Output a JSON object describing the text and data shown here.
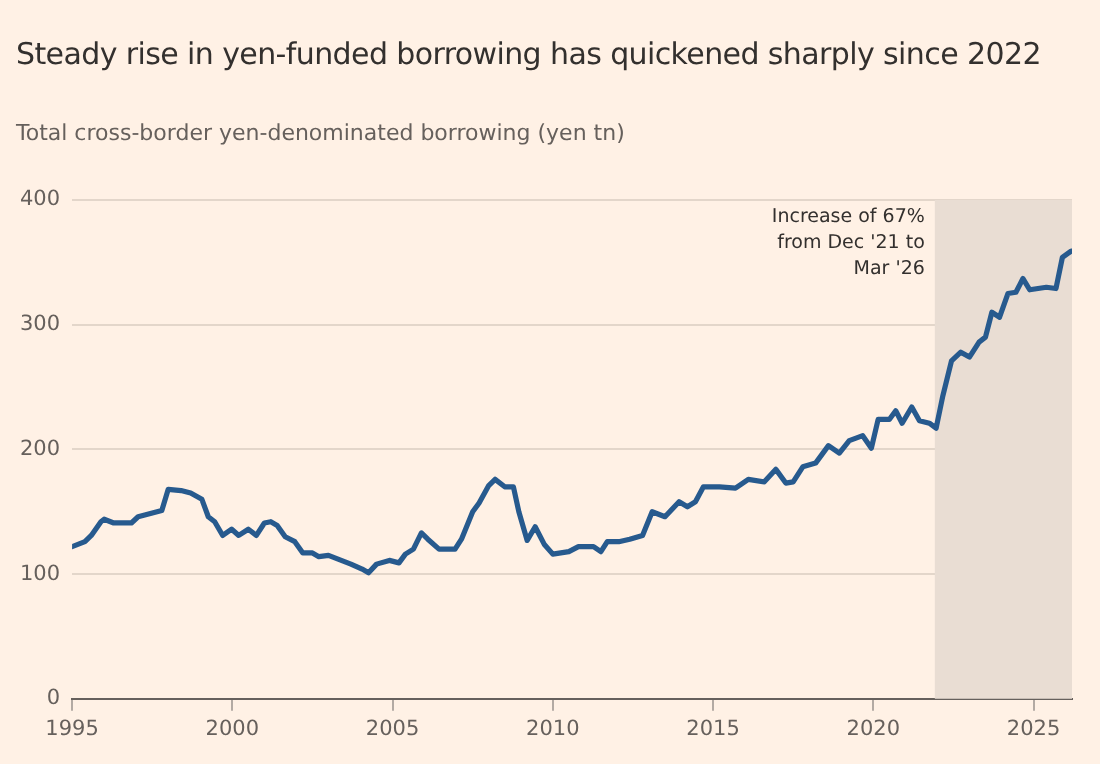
{
  "chart_data": {
    "type": "line",
    "title": "Steady rise in yen-funded borrowing has quickened sharply since 2022",
    "subtitle": "Total cross-border yen-denominated borrowing (yen tn)",
    "x": [
      1995.0,
      1995.4,
      1995.6,
      1995.9,
      1996.0,
      1996.3,
      1996.85,
      1997.06,
      1997.8,
      1998.0,
      1998.4,
      1998.7,
      1999.05,
      1999.25,
      1999.45,
      1999.7,
      1999.98,
      2000.2,
      2000.5,
      2000.75,
      2001.0,
      2001.2,
      2001.4,
      2001.65,
      2001.95,
      2002.2,
      2002.5,
      2002.7,
      2003.0,
      2003.3,
      2003.7,
      2004.05,
      2004.25,
      2004.5,
      2004.9,
      2005.2,
      2005.4,
      2005.65,
      2005.9,
      2006.1,
      2006.45,
      2006.95,
      2007.15,
      2007.5,
      2007.7,
      2008.0,
      2008.2,
      2008.5,
      2008.77,
      2008.94,
      2009.2,
      2009.45,
      2009.73,
      2010.0,
      2010.5,
      2010.8,
      2011.27,
      2011.5,
      2011.7,
      2012.06,
      2012.4,
      2012.8,
      2013.1,
      2013.5,
      2013.94,
      2014.2,
      2014.45,
      2014.7,
      2015.2,
      2015.7,
      2016.1,
      2016.6,
      2016.96,
      2017.27,
      2017.5,
      2017.8,
      2018.2,
      2018.6,
      2018.94,
      2019.25,
      2019.67,
      2019.94,
      2020.15,
      2020.5,
      2020.7,
      2020.9,
      2021.2,
      2021.44,
      2021.75,
      2021.96,
      2022.17,
      2022.44,
      2022.73,
      2023.0,
      2023.3,
      2023.5,
      2023.7,
      2023.94,
      2024.2,
      2024.45,
      2024.67,
      2024.88,
      2025.4,
      2025.7,
      2025.9,
      2026.17
    ],
    "series": [
      {
        "color": "#275a8e",
        "values": [
          122,
          126,
          131,
          142,
          144,
          141,
          141,
          146,
          151,
          168,
          167,
          165,
          160,
          146,
          142,
          131,
          136,
          131,
          136,
          131,
          141,
          142,
          139,
          130,
          126,
          117,
          117,
          114,
          115,
          112,
          108,
          104,
          101,
          108,
          111,
          109,
          116,
          120,
          133,
          128,
          120,
          120,
          128,
          150,
          157,
          171,
          176,
          170,
          170,
          150,
          127,
          138,
          124,
          116,
          118,
          122,
          122,
          118,
          126,
          126,
          128,
          131,
          150,
          146,
          158,
          154,
          158,
          170,
          170,
          169,
          176,
          174,
          184,
          173,
          174,
          186,
          189,
          203,
          197,
          207,
          211,
          201,
          224,
          224,
          231,
          221,
          234,
          223,
          221,
          217,
          243,
          271,
          278,
          274,
          286,
          290,
          310,
          306,
          325,
          326,
          337,
          328,
          330,
          329,
          354,
          359
        ]
      }
    ],
    "xlim": [
      1995,
      2026.2
    ],
    "xticks": [
      1995,
      2000,
      2005,
      2010,
      2015,
      2020,
      2025
    ],
    "ylim": [
      0,
      400
    ],
    "yticks": [
      0,
      100,
      200,
      300,
      400
    ],
    "grid": "y",
    "legend": false,
    "line_style": "solid",
    "marker": "none",
    "bands": [
      {
        "axis": "x",
        "from": 2021.92,
        "to": 2026.2,
        "label": "Increase of 67% from Dec '21 to Mar '26",
        "color": "#e9ddd3"
      }
    ]
  }
}
